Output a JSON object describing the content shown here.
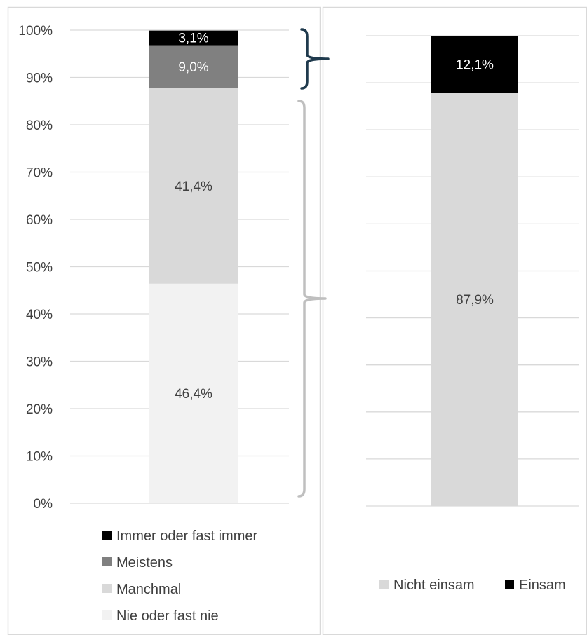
{
  "chart_data": [
    {
      "type": "bar",
      "stacked": true,
      "categories": [
        ""
      ],
      "series": [
        {
          "name": "Nie oder fast nie",
          "values": [
            46.4
          ],
          "label": "46,4%",
          "color": "#f2f2f2",
          "label_color": "#404040"
        },
        {
          "name": "Manchmal",
          "values": [
            41.4
          ],
          "label": "41,4%",
          "color": "#d9d9d9",
          "label_color": "#404040"
        },
        {
          "name": "Meistens",
          "values": [
            9.0
          ],
          "label": "9,0%",
          "color": "#808080",
          "label_color": "#ffffff"
        },
        {
          "name": "Immer oder fast immer",
          "values": [
            3.1
          ],
          "label": "3,1%",
          "color": "#000000",
          "label_color": "#ffffff"
        }
      ],
      "yticks": [
        "0%",
        "10%",
        "20%",
        "30%",
        "40%",
        "50%",
        "60%",
        "70%",
        "80%",
        "90%",
        "100%"
      ],
      "ylim": [
        0,
        100
      ],
      "grid": true,
      "legend": "bottom",
      "legend_order": [
        "Immer oder fast immer",
        "Meistens",
        "Manchmal",
        "Nie oder fast nie"
      ]
    },
    {
      "type": "bar",
      "stacked": true,
      "categories": [
        ""
      ],
      "series": [
        {
          "name": "Nicht einsam",
          "values": [
            87.9
          ],
          "label": "87,9%",
          "color": "#d9d9d9",
          "label_color": "#404040"
        },
        {
          "name": "Einsam",
          "values": [
            12.1
          ],
          "label": "12,1%",
          "color": "#000000",
          "label_color": "#ffffff"
        }
      ],
      "ylim": [
        0,
        100
      ],
      "grid": true,
      "legend": "bottom"
    }
  ],
  "colors": {
    "grid": "#d9d9d9",
    "axis": "#d9d9d9",
    "brace_top": "#1f3a4d",
    "brace_bottom": "#bfbfbf",
    "frame": "#d9d9d9"
  }
}
